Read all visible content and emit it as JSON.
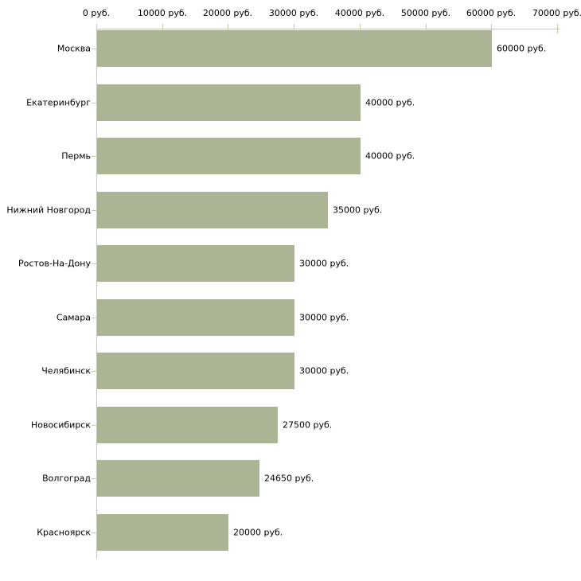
{
  "chart_data": {
    "type": "bar",
    "orientation": "horizontal",
    "unit": "руб.",
    "categories": [
      "Москва",
      "Екатеринбург",
      "Пермь",
      "Нижний Новгород",
      "Ростов-На-Дону",
      "Самара",
      "Челябинск",
      "Новосибирск",
      "Волгоград",
      "Красноярск"
    ],
    "values": [
      60000,
      40000,
      40000,
      35000,
      30000,
      30000,
      30000,
      27500,
      24650,
      20000
    ],
    "value_labels": [
      "60000 руб.",
      "40000 руб.",
      "40000 руб.",
      "35000 руб.",
      "30000 руб.",
      "30000 руб.",
      "30000 руб.",
      "27500 руб.",
      "24650 руб.",
      "20000 руб."
    ],
    "x_axis": {
      "position": "top",
      "min": 0,
      "max": 70000,
      "ticks": [
        0,
        10000,
        20000,
        30000,
        40000,
        50000,
        60000,
        70000
      ],
      "tick_labels": [
        "0 руб.",
        "10000 руб.",
        "20000 руб.",
        "30000 руб.",
        "40000 руб.",
        "50000 руб.",
        "60000 руб.",
        "70000 руб."
      ]
    },
    "legend": "none",
    "grid": "off",
    "colors": {
      "bar": "#acb496",
      "axis_line": "#c4c4c4",
      "tick": "#cbcb9e",
      "text": "#000000",
      "background": "#ffffff"
    }
  }
}
